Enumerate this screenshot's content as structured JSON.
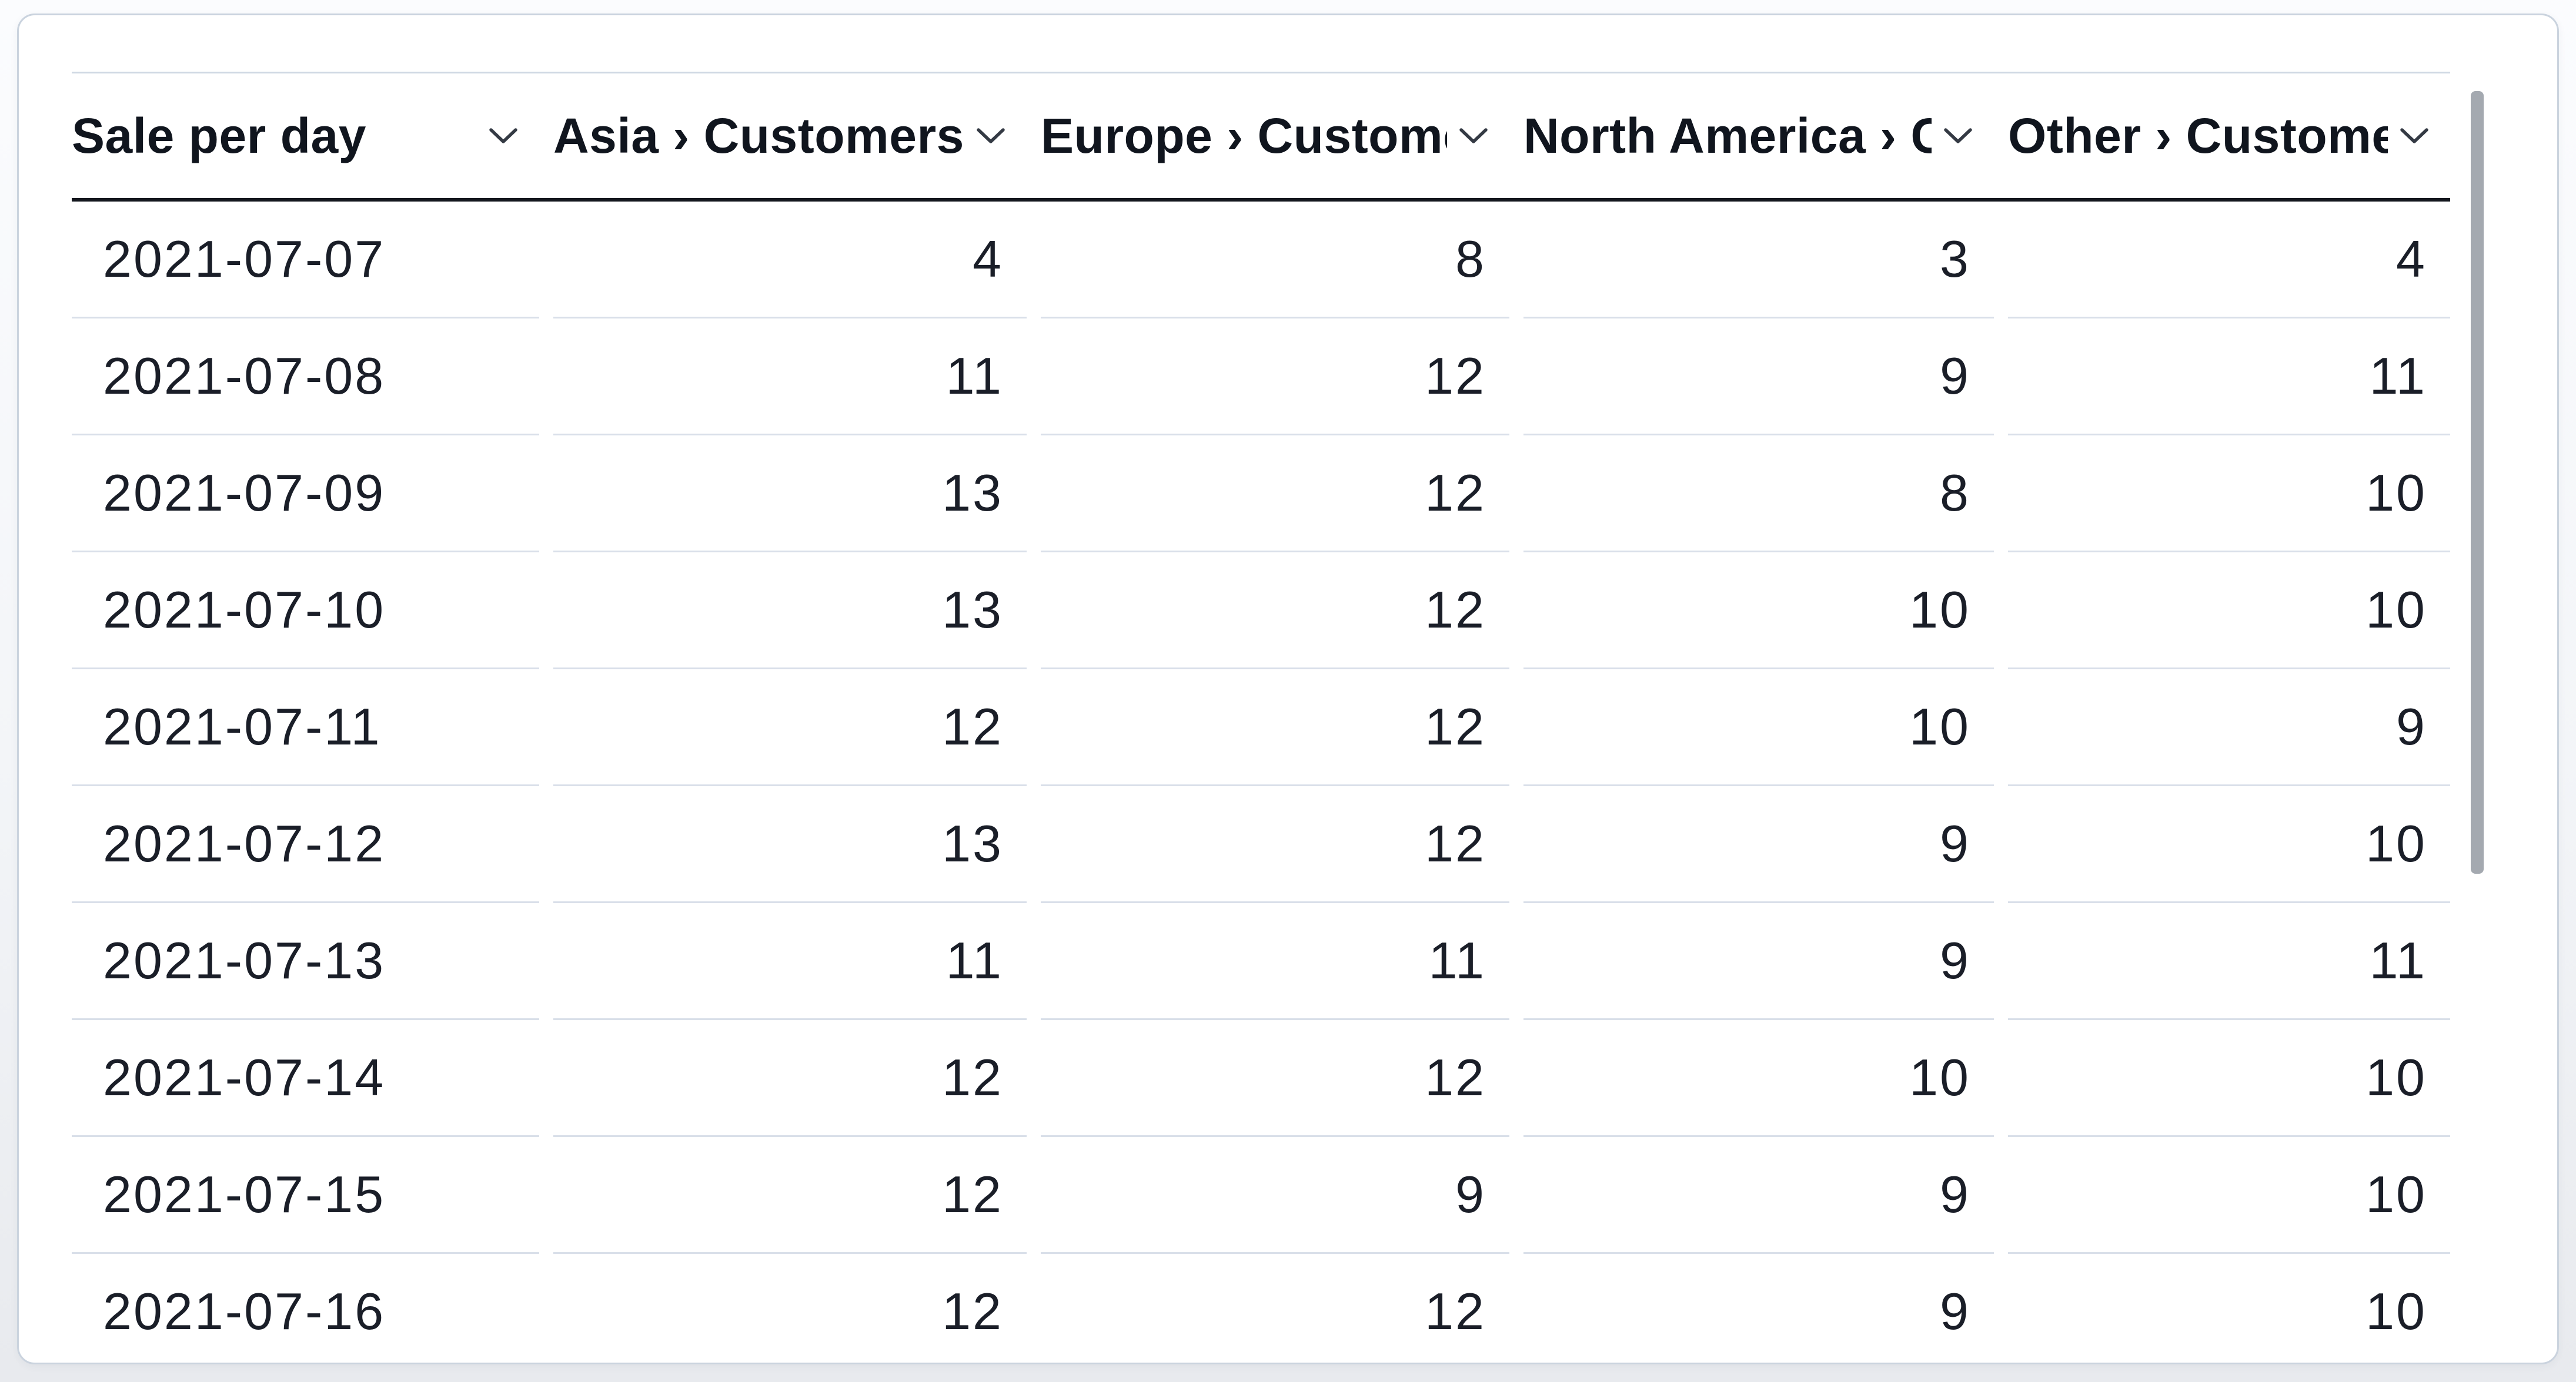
{
  "widget": {
    "title": "Sale per day",
    "kind": "table"
  },
  "table": {
    "columns": [
      {
        "label": "Sale per day"
      },
      {
        "label": "Asia › Customers"
      },
      {
        "label": "Europe › Customers"
      },
      {
        "label": "North America › Customers"
      },
      {
        "label": "Other › Customers"
      }
    ],
    "rows": [
      [
        "2021-07-07",
        "4",
        "8",
        "3",
        "4"
      ],
      [
        "2021-07-08",
        "11",
        "12",
        "9",
        "11"
      ],
      [
        "2021-07-09",
        "13",
        "12",
        "8",
        "10"
      ],
      [
        "2021-07-10",
        "13",
        "12",
        "10",
        "10"
      ],
      [
        "2021-07-11",
        "12",
        "12",
        "10",
        "9"
      ],
      [
        "2021-07-12",
        "13",
        "12",
        "9",
        "10"
      ],
      [
        "2021-07-13",
        "11",
        "11",
        "9",
        "11"
      ],
      [
        "2021-07-14",
        "12",
        "12",
        "10",
        "10"
      ],
      [
        "2021-07-15",
        "12",
        "9",
        "9",
        "10"
      ],
      [
        "2021-07-16",
        "12",
        "12",
        "9",
        "10"
      ]
    ]
  },
  "icons": {
    "header_sort": "chevron-down-icon"
  },
  "colors": {
    "card_background": "#ffffff",
    "card_border": "#cad3de",
    "header_rule": "#14171e",
    "row_separator": "#d9dfe9",
    "header_text": "#10151e",
    "cell_text": "#1a1e28",
    "scrollbar_thumb": "#a4a9b0"
  }
}
